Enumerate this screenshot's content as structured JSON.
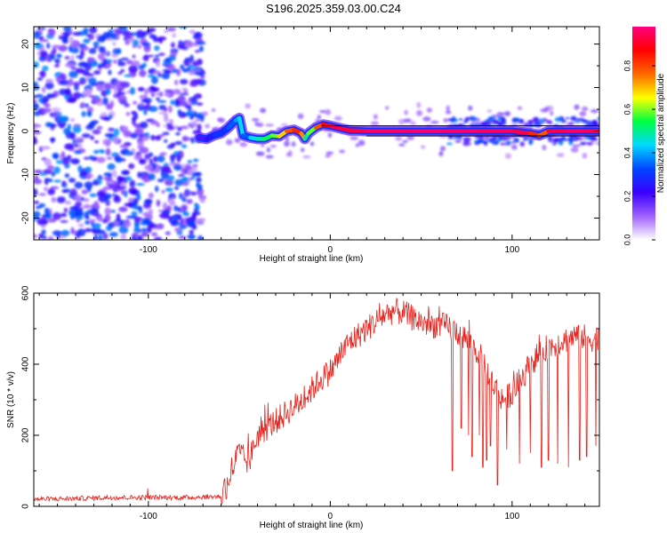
{
  "title": "S196.2025.359.03.00.C24",
  "chart_data": [
    {
      "type": "heatmap",
      "title": "S196.2025.359.03.00.C24",
      "xlabel": "Height of straight line (km)",
      "ylabel": "Frequency (Hz)",
      "xlim": [
        -163,
        148
      ],
      "ylim": [
        -25,
        24
      ],
      "x_ticks": [
        -100,
        0,
        100
      ],
      "y_ticks": [
        20,
        10,
        0,
        -10,
        -20
      ],
      "colorbar": {
        "label": "Normalized spectral amplitude",
        "range": [
          0,
          0.98
        ],
        "ticks": [
          "0.0",
          "0.2",
          "0.4",
          "0.6",
          "0.8"
        ],
        "colormap": [
          "#ffffff",
          "#a060ff",
          "#3a00ff",
          "#0044ff",
          "#00d8ff",
          "#00ff40",
          "#ffff00",
          "#ff6600",
          "#ff0000",
          "#ff0080"
        ]
      },
      "noise_region": {
        "x": [
          -163,
          -70
        ],
        "y": [
          -25,
          24
        ],
        "level": 0.15
      },
      "trace": {
        "x": [
          -72,
          -68,
          -64,
          -60,
          -56,
          -52,
          -50,
          -48,
          -44,
          -40,
          -36,
          -32,
          -28,
          -24,
          -20,
          -16,
          -14,
          -12,
          -8,
          -4,
          0,
          10,
          20,
          40,
          60,
          80,
          100,
          110,
          115,
          120,
          130,
          140,
          148
        ],
        "freq": [
          -1.5,
          -1.8,
          -1.0,
          -0.5,
          0.8,
          2.5,
          3.0,
          -1.0,
          -1.5,
          -1.8,
          -1.8,
          -1.0,
          -1.2,
          0.0,
          0.3,
          -0.5,
          -1.8,
          -0.5,
          0.8,
          1.5,
          1.2,
          0.2,
          0.0,
          0.0,
          0.0,
          0.0,
          0.0,
          -0.5,
          -1.0,
          0.0,
          0.0,
          0.0,
          0.0
        ],
        "amplitude": [
          0.2,
          0.25,
          0.3,
          0.3,
          0.35,
          0.4,
          0.45,
          0.35,
          0.45,
          0.5,
          0.55,
          0.6,
          0.7,
          0.8,
          0.85,
          0.75,
          0.5,
          0.6,
          0.8,
          0.9,
          0.95,
          0.95,
          0.97,
          0.98,
          0.98,
          0.97,
          0.95,
          0.85,
          0.8,
          0.95,
          0.97,
          0.96,
          0.96
        ]
      },
      "weak_region": {
        "x": [
          65,
          148
        ],
        "y": [
          -3,
          3
        ],
        "level": 0.25
      }
    },
    {
      "type": "line",
      "title": "",
      "xlabel": "Height of straight line (km)",
      "ylabel": "SNR (10 * v/v)",
      "xlim": [
        -163,
        148
      ],
      "ylim": [
        0,
        600
      ],
      "x_ticks": [
        -100,
        0,
        100
      ],
      "y_ticks": [
        0,
        200,
        400,
        600
      ],
      "color": "#e8211c",
      "series": [
        {
          "name": "SNR",
          "x": [
            -163,
            -140,
            -120,
            -100,
            -80,
            -60,
            -55,
            -52,
            -50,
            -45,
            -40,
            -35,
            -30,
            -25,
            -20,
            -15,
            -10,
            -5,
            0,
            5,
            10,
            15,
            20,
            25,
            30,
            35,
            40,
            45,
            50,
            55,
            60,
            65,
            70,
            75,
            80,
            85,
            90,
            95,
            100,
            105,
            110,
            115,
            120,
            125,
            130,
            135,
            140,
            145,
            148
          ],
          "values": [
            20,
            22,
            25,
            25,
            25,
            28,
            90,
            130,
            150,
            120,
            200,
            220,
            240,
            260,
            280,
            300,
            330,
            360,
            380,
            420,
            460,
            480,
            500,
            520,
            540,
            550,
            545,
            530,
            520,
            510,
            510,
            505,
            490,
            470,
            440,
            400,
            340,
            300,
            320,
            360,
            400,
            430,
            450,
            460,
            470,
            480,
            475,
            470,
            480
          ]
        }
      ],
      "dropouts": [
        {
          "x": 67,
          "min": 100
        },
        {
          "x": 72,
          "min": 220
        },
        {
          "x": 76,
          "min": 200
        },
        {
          "x": 78,
          "min": 140
        },
        {
          "x": 82,
          "min": 200
        },
        {
          "x": 84,
          "min": 110
        },
        {
          "x": 86,
          "min": 130
        },
        {
          "x": 88,
          "min": 170
        },
        {
          "x": 92,
          "min": 60
        },
        {
          "x": 97,
          "min": 160
        },
        {
          "x": 104,
          "min": 120
        },
        {
          "x": 110,
          "min": 150
        },
        {
          "x": 116,
          "min": 110
        },
        {
          "x": 120,
          "min": 130
        },
        {
          "x": 125,
          "min": 120
        },
        {
          "x": 131,
          "min": 110
        },
        {
          "x": 137,
          "min": 130
        },
        {
          "x": 141,
          "min": 140
        },
        {
          "x": 146,
          "min": 170
        }
      ]
    }
  ]
}
